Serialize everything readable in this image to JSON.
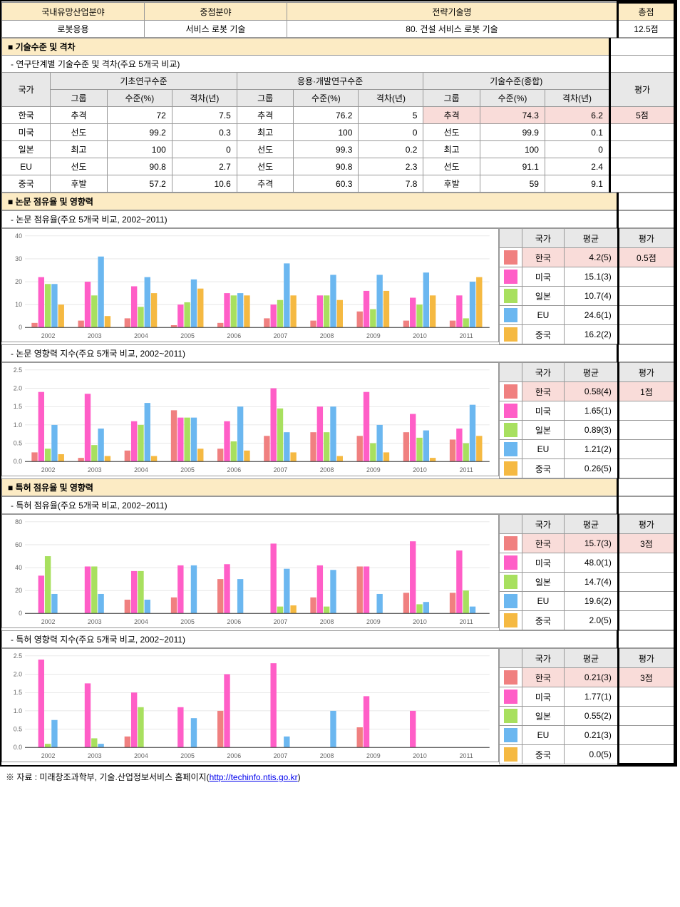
{
  "header": {
    "col1_label": "국내유망산업분야",
    "col2_label": "중점분야",
    "col3_label": "전략기술명",
    "col4_label": "총점",
    "col1_value": "로봇응용",
    "col2_value": "서비스 로봇 기술",
    "col3_value": "80. 건설 서비스 로봇 기술",
    "col4_value": "12.5점"
  },
  "section1": {
    "title": "■ 기술수준 및 격차",
    "subtitle": "- 연구단계별 기술수준 및 격차(주요 5개국 비교)",
    "cols": {
      "country": "국가",
      "basic": "기초연구수준",
      "applied": "응용·개발연구수준",
      "overall": "기술수준(종합)",
      "eval": "평가",
      "group": "그룹",
      "level": "수준(%)",
      "gap": "격차(년)"
    },
    "rows": [
      {
        "country": "한국",
        "b_g": "추격",
        "b_l": "72",
        "b_gap": "7.5",
        "a_g": "추격",
        "a_l": "76.2",
        "a_gap": "5",
        "o_g": "추격",
        "o_l": "74.3",
        "o_gap": "6.2",
        "eval": "5점",
        "hl": true
      },
      {
        "country": "미국",
        "b_g": "선도",
        "b_l": "99.2",
        "b_gap": "0.3",
        "a_g": "최고",
        "a_l": "100",
        "a_gap": "0",
        "o_g": "선도",
        "o_l": "99.9",
        "o_gap": "0.1",
        "eval": ""
      },
      {
        "country": "일본",
        "b_g": "최고",
        "b_l": "100",
        "b_gap": "0",
        "a_g": "선도",
        "a_l": "99.3",
        "a_gap": "0.2",
        "o_g": "최고",
        "o_l": "100",
        "o_gap": "0",
        "eval": ""
      },
      {
        "country": "EU",
        "b_g": "선도",
        "b_l": "90.8",
        "b_gap": "2.7",
        "a_g": "선도",
        "a_l": "90.8",
        "a_gap": "2.3",
        "o_g": "선도",
        "o_l": "91.1",
        "o_gap": "2.4",
        "eval": ""
      },
      {
        "country": "중국",
        "b_g": "후발",
        "b_l": "57.2",
        "b_gap": "10.6",
        "a_g": "추격",
        "a_l": "60.3",
        "a_gap": "7.8",
        "o_g": "후발",
        "o_l": "59",
        "o_gap": "9.1",
        "eval": ""
      }
    ]
  },
  "section2": {
    "title": "■ 논문 점유율 및 영향력"
  },
  "section3": {
    "title": "■ 특허 점유율 및 영향력"
  },
  "legend_hdr": {
    "country": "국가",
    "avg": "평균",
    "eval": "평가"
  },
  "countries": [
    "한국",
    "미국",
    "일본",
    "EU",
    "중국"
  ],
  "colors": {
    "korea": "#f08080",
    "us": "#ff5ec7",
    "japan": "#a8e05f",
    "eu": "#6bb7f0",
    "china": "#f5b942",
    "grid": "#d0d0d0",
    "axis": "#333333",
    "text": "#666666",
    "hl_bg": "#f9dcd9"
  },
  "chart1": {
    "subtitle": "- 논문 점유율(주요 5개국 비교, 2002~2011)",
    "ymax": 40,
    "ytick": 10,
    "years": [
      "2002",
      "2003",
      "2004",
      "2005",
      "2006",
      "2007",
      "2008",
      "2009",
      "2010",
      "2011"
    ],
    "data": {
      "korea": [
        2,
        3,
        4,
        1,
        2,
        4,
        3,
        7,
        3,
        3
      ],
      "us": [
        22,
        20,
        18,
        10,
        15,
        10,
        14,
        16,
        13,
        14
      ],
      "japan": [
        19,
        14,
        9,
        11,
        14,
        12,
        14,
        8,
        10,
        4
      ],
      "eu": [
        19,
        31,
        22,
        21,
        15,
        28,
        23,
        23,
        24,
        20
      ],
      "china": [
        10,
        5,
        15,
        17,
        14,
        14,
        12,
        16,
        14,
        22
      ]
    },
    "legend": [
      {
        "country": "한국",
        "avg": "4.2(5)",
        "eval": "0.5점",
        "color": "#f08080",
        "hl": true
      },
      {
        "country": "미국",
        "avg": "15.1(3)",
        "eval": "",
        "color": "#ff5ec7"
      },
      {
        "country": "일본",
        "avg": "10.7(4)",
        "eval": "",
        "color": "#a8e05f"
      },
      {
        "country": "EU",
        "avg": "24.6(1)",
        "eval": "",
        "color": "#6bb7f0"
      },
      {
        "country": "중국",
        "avg": "16.2(2)",
        "eval": "",
        "color": "#f5b942"
      }
    ]
  },
  "chart2": {
    "subtitle": "- 논문 영향력 지수(주요 5개국 비교, 2002~2011)",
    "ymax": 2.5,
    "ytick": 0.5,
    "years": [
      "2002",
      "2003",
      "2004",
      "2005",
      "2006",
      "2007",
      "2008",
      "2009",
      "2010",
      "2011"
    ],
    "data": {
      "korea": [
        0.25,
        0.1,
        0.3,
        1.4,
        0.35,
        0.7,
        0.8,
        0.7,
        0.8,
        0.6
      ],
      "us": [
        1.9,
        1.85,
        1.1,
        1.2,
        1.1,
        2.0,
        1.5,
        1.9,
        1.3,
        0.9
      ],
      "japan": [
        0.35,
        0.45,
        1.0,
        1.2,
        0.55,
        1.45,
        0.8,
        0.5,
        0.65,
        0.5
      ],
      "eu": [
        1.0,
        0.9,
        1.6,
        1.2,
        1.5,
        0.8,
        1.5,
        1.0,
        0.85,
        1.55
      ],
      "china": [
        0.2,
        0.15,
        0.15,
        0.35,
        0.3,
        0.25,
        0.15,
        0.25,
        0.1,
        0.7
      ]
    },
    "legend": [
      {
        "country": "한국",
        "avg": "0.58(4)",
        "eval": "1점",
        "color": "#f08080",
        "hl": true
      },
      {
        "country": "미국",
        "avg": "1.65(1)",
        "eval": "",
        "color": "#ff5ec7"
      },
      {
        "country": "일본",
        "avg": "0.89(3)",
        "eval": "",
        "color": "#a8e05f"
      },
      {
        "country": "EU",
        "avg": "1.21(2)",
        "eval": "",
        "color": "#6bb7f0"
      },
      {
        "country": "중국",
        "avg": "0.26(5)",
        "eval": "",
        "color": "#f5b942"
      }
    ]
  },
  "chart3": {
    "subtitle": "- 특허 점유율(주요 5개국 비교, 2002~2011)",
    "ymax": 80,
    "ytick": 20,
    "years": [
      "2002",
      "2003",
      "2004",
      "2005",
      "2006",
      "2007",
      "2008",
      "2009",
      "2010",
      "2011"
    ],
    "data": {
      "korea": [
        0,
        0,
        12,
        14,
        30,
        0,
        14,
        41,
        18,
        18
      ],
      "us": [
        33,
        41,
        37,
        42,
        43,
        61,
        42,
        41,
        63,
        55
      ],
      "japan": [
        50,
        41,
        37,
        0,
        0,
        6,
        6,
        0,
        8,
        20
      ],
      "eu": [
        17,
        17,
        12,
        42,
        30,
        39,
        38,
        17,
        10,
        6
      ],
      "china": [
        0,
        0,
        0,
        0,
        0,
        7,
        0,
        0,
        0,
        0
      ]
    },
    "legend": [
      {
        "country": "한국",
        "avg": "15.7(3)",
        "eval": "3점",
        "color": "#f08080",
        "hl": true
      },
      {
        "country": "미국",
        "avg": "48.0(1)",
        "eval": "",
        "color": "#ff5ec7"
      },
      {
        "country": "일본",
        "avg": "14.7(4)",
        "eval": "",
        "color": "#a8e05f"
      },
      {
        "country": "EU",
        "avg": "19.6(2)",
        "eval": "",
        "color": "#6bb7f0"
      },
      {
        "country": "중국",
        "avg": "2.0(5)",
        "eval": "",
        "color": "#f5b942"
      }
    ]
  },
  "chart4": {
    "subtitle": "- 특허 영향력 지수(주요 5개국 비교, 2002~2011)",
    "ymax": 2.5,
    "ytick": 0.5,
    "years": [
      "2002",
      "2003",
      "2004",
      "2005",
      "2006",
      "2007",
      "2008",
      "2009",
      "2010",
      "2011"
    ],
    "data": {
      "korea": [
        0,
        0,
        0.3,
        0,
        1.0,
        0,
        0,
        0.55,
        0,
        0
      ],
      "us": [
        2.4,
        1.75,
        1.5,
        1.1,
        2.0,
        2.3,
        0,
        1.4,
        1.0,
        0
      ],
      "japan": [
        0.1,
        0.25,
        1.1,
        0,
        0,
        0,
        0,
        0,
        0,
        0
      ],
      "eu": [
        0.75,
        0.1,
        0,
        0.8,
        0,
        0.3,
        1.0,
        0,
        0,
        0
      ],
      "china": [
        0,
        0,
        0,
        0,
        0,
        0,
        0,
        0,
        0,
        0
      ]
    },
    "legend": [
      {
        "country": "한국",
        "avg": "0.21(3)",
        "eval": "3점",
        "color": "#f08080",
        "hl": true
      },
      {
        "country": "미국",
        "avg": "1.77(1)",
        "eval": "",
        "color": "#ff5ec7"
      },
      {
        "country": "일본",
        "avg": "0.55(2)",
        "eval": "",
        "color": "#a8e05f"
      },
      {
        "country": "EU",
        "avg": "0.21(3)",
        "eval": "",
        "color": "#6bb7f0"
      },
      {
        "country": "중국",
        "avg": "0.0(5)",
        "eval": "",
        "color": "#f5b942"
      }
    ]
  },
  "footnote": {
    "prefix": "※ 자료 : 미래창조과학부, 기술.산업정보서비스 홈페이지(",
    "link": "http://techinfo.ntis.go.kr",
    "suffix": ")"
  }
}
